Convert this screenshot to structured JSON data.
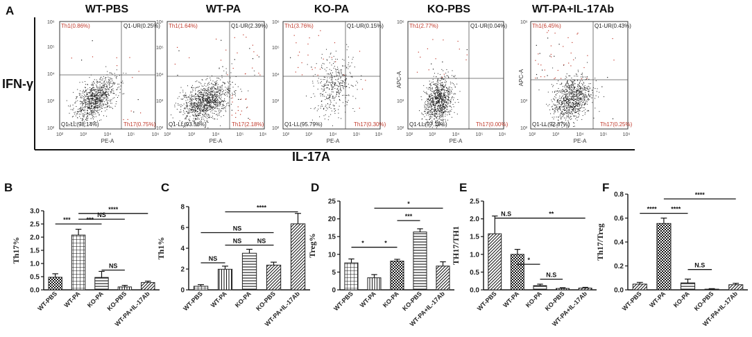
{
  "figure": {
    "panel_labels": [
      "A",
      "B",
      "C",
      "D",
      "E",
      "F"
    ],
    "y_axis_label": "IFN-γ",
    "x_axis_label": "IL-17A"
  },
  "flow": {
    "x_title": "PE-A",
    "y_title": "APC-A",
    "x_ticks": [
      "10²",
      "10³",
      "10⁴",
      "10⁵",
      "10⁶"
    ],
    "y_ticks": [
      "10²",
      "10³",
      "10⁴",
      "10⁵",
      "10⁶"
    ],
    "panels": [
      {
        "title": "WT-PBS",
        "ul": "Th1(0.86%)",
        "ur": "Q1-UR(0.25%)",
        "ll": "Q1-LL(98.14%)",
        "lr": "Th17(0.75%)",
        "pct": {
          "ul": 0.86,
          "ur": 0.25,
          "ll": 98.14,
          "lr": 0.75
        }
      },
      {
        "title": "WT-PA",
        "ul": "Th1(1.64%)",
        "ur": "Q1-UR(2.39%)",
        "ll": "Q1-LL(93.58%)",
        "lr": "Th17(2.18%)",
        "pct": {
          "ul": 1.64,
          "ur": 2.39,
          "ll": 93.58,
          "lr": 2.18
        }
      },
      {
        "title": "KO-PA",
        "ul": "Th1(3.76%)",
        "ur": "Q1-UR(0.15%)",
        "ll": "Q1-LL(95.79%)",
        "lr": "Th17(0.30%)",
        "pct": {
          "ul": 3.76,
          "ur": 0.15,
          "ll": 95.79,
          "lr": 0.3
        }
      },
      {
        "title": "KO-PBS",
        "ul": "Th1(2.77%)",
        "ur": "Q1-UR(0.04%)",
        "ll": "Q1-LL(97.18%)",
        "lr": "Th17(0.00%)",
        "pct": {
          "ul": 2.77,
          "ur": 0.04,
          "ll": 97.18,
          "lr": 0.0
        }
      },
      {
        "title": "WT-PA+IL-17Ab",
        "ul": "Th1(6.45%)",
        "ur": "Q1-UR(0.43%)",
        "ll": "Q1-LL(92.87%)",
        "lr": "Th17(0.25%)",
        "pct": {
          "ul": 6.45,
          "ur": 0.43,
          "ll": 92.87,
          "lr": 0.25
        }
      }
    ]
  },
  "chart_data": [
    {
      "id": "B",
      "type": "bar",
      "ylabel": "Th17%",
      "categories": [
        "WT-PBS",
        "WT-PA",
        "KO-PA",
        "KO-PBS",
        "WT-PA+IL-17Ab"
      ],
      "values": [
        0.48,
        2.08,
        0.47,
        0.11,
        0.28
      ],
      "errors": [
        0.13,
        0.22,
        0.23,
        0.06,
        0.05
      ],
      "ylim": [
        0,
        3.0
      ],
      "yticks": [
        0,
        0.5,
        1.0,
        1.5,
        2.0,
        2.5,
        3.0
      ],
      "tick_labels": [
        "0.0",
        "0.5",
        "1.0",
        "1.5",
        "2.0",
        "2.5",
        "3.0"
      ],
      "comparisons": [
        {
          "from": 0,
          "to": 1,
          "label": "***",
          "level": 2.5
        },
        {
          "from": 1,
          "to": 2,
          "label": "***",
          "level": 2.5
        },
        {
          "from": 1,
          "to": 3,
          "label": "NS",
          "level": 2.68
        },
        {
          "from": 1,
          "to": 4,
          "label": "****",
          "level": 2.9
        },
        {
          "from": 2,
          "to": 3,
          "label": "NS",
          "level": 0.75
        }
      ]
    },
    {
      "id": "C",
      "type": "bar",
      "ylabel": "Th1%",
      "categories": [
        "WT-PBS",
        "WT-PA",
        "KO-PA",
        "KO-PBS",
        "WT-PA+IL-17Ab"
      ],
      "values": [
        0.35,
        1.98,
        3.52,
        2.38,
        6.35
      ],
      "errors": [
        0.15,
        0.3,
        0.38,
        0.28,
        1.0
      ],
      "ylim": [
        0,
        8
      ],
      "yticks": [
        0,
        2,
        4,
        6,
        8
      ],
      "tick_labels": [
        "0",
        "2",
        "4",
        "6",
        "8"
      ],
      "comparisons": [
        {
          "from": 0,
          "to": 1,
          "label": "NS",
          "level": 2.6
        },
        {
          "from": 1,
          "to": 2,
          "label": "NS",
          "level": 4.3
        },
        {
          "from": 2,
          "to": 3,
          "label": "NS",
          "level": 4.3
        },
        {
          "from": 0,
          "to": 3,
          "label": "NS",
          "level": 5.5
        },
        {
          "from": 1,
          "to": 4,
          "label": "****",
          "level": 7.5
        }
      ]
    },
    {
      "id": "D",
      "type": "bar",
      "ylabel": "Treg%",
      "categories": [
        "WT-PBS",
        "WT-PA",
        "KO-PA",
        "KO-PBS",
        "WT-PA+IL-17Ab"
      ],
      "values": [
        7.6,
        3.4,
        8.1,
        16.3,
        6.7
      ],
      "errors": [
        1.1,
        0.9,
        0.5,
        0.9,
        1.2
      ],
      "ylim": [
        0,
        25
      ],
      "yticks": [
        0,
        5,
        10,
        15,
        20,
        25
      ],
      "tick_labels": [
        "0",
        "5",
        "10",
        "15",
        "20",
        "25"
      ],
      "comparisons": [
        {
          "from": 0,
          "to": 1,
          "label": "*",
          "level": 12.0
        },
        {
          "from": 1,
          "to": 2,
          "label": "*",
          "level": 12.0
        },
        {
          "from": 2,
          "to": 3,
          "label": "***",
          "level": 19.5
        },
        {
          "from": 1,
          "to": 4,
          "label": "*",
          "level": 23.0
        }
      ]
    },
    {
      "id": "E",
      "type": "bar",
      "ylabel": "TH17/TH1",
      "categories": [
        "WT-PBS",
        "WT-PA",
        "KO-PA",
        "KO-PBS",
        "WT-PA+IL-17Ab"
      ],
      "values": [
        1.58,
        1.0,
        0.12,
        0.04,
        0.05
      ],
      "errors": [
        0.5,
        0.14,
        0.04,
        0.02,
        0.02
      ],
      "ylim": [
        0,
        2.5
      ],
      "yticks": [
        0,
        0.5,
        1.0,
        1.5,
        2.0,
        2.5
      ],
      "tick_labels": [
        "0.0",
        "0.5",
        "1.0",
        "1.5",
        "2.0",
        "2.5"
      ],
      "comparisons": [
        {
          "from": 0,
          "to": 1,
          "label": "N.S",
          "level": 2.02
        },
        {
          "from": 1,
          "to": 4,
          "label": "**",
          "level": 2.02
        },
        {
          "from": 1,
          "to": 2,
          "label": "*",
          "level": 0.72
        },
        {
          "from": 2,
          "to": 3,
          "label": "N.S",
          "level": 0.3
        }
      ]
    },
    {
      "id": "F",
      "type": "bar",
      "ylabel": "Th17/Treg",
      "categories": [
        "WT-PBS",
        "WT-PA",
        "KO-PA",
        "KO-PBS",
        "WT-PA+IL-17Ab"
      ],
      "values": [
        0.048,
        0.555,
        0.058,
        0.006,
        0.043
      ],
      "errors": [
        0.014,
        0.045,
        0.032,
        0.004,
        0.012
      ],
      "ylim": [
        0,
        0.8
      ],
      "yticks": [
        0,
        0.2,
        0.4,
        0.6,
        0.8
      ],
      "tick_labels": [
        "0.0",
        "0.2",
        "0.4",
        "0.6",
        "0.8"
      ],
      "comparisons": [
        {
          "from": 0,
          "to": 1,
          "label": "****",
          "level": 0.64
        },
        {
          "from": 1,
          "to": 2,
          "label": "****",
          "level": 0.64
        },
        {
          "from": 2,
          "to": 3,
          "label": "N.S",
          "level": 0.17
        },
        {
          "from": 1,
          "to": 4,
          "label": "****",
          "level": 0.76
        }
      ]
    }
  ],
  "colors": {
    "ink": "#111111",
    "dots": "#1a1a1a",
    "red": "#c0392b",
    "bar_fill": "#ffffff",
    "bar_stroke": "#222222"
  }
}
